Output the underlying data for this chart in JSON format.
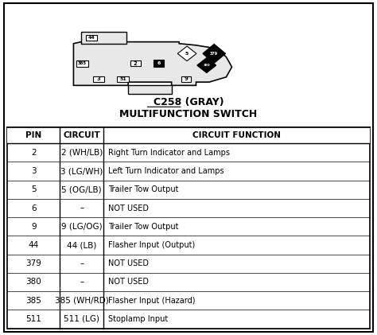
{
  "title_line1": "C258 (GRAY)",
  "title_line2": "MULTIFUNCTION SWITCH",
  "col_headers": [
    "PIN",
    "CIRCUIT",
    "CIRCUIT FUNCTION"
  ],
  "rows": [
    [
      "2",
      "2 (WH/LB)",
      "Right Turn Indicator and Lamps"
    ],
    [
      "3",
      "3 (LG/WH)",
      "Left Turn Indicator and Lamps"
    ],
    [
      "5",
      "5 (OG/LB)",
      "Trailer Tow Output"
    ],
    [
      "6",
      "–",
      "NOT USED"
    ],
    [
      "9",
      "9 (LG/OG)",
      "Trailer Tow Output"
    ],
    [
      "44",
      "44 (LB)",
      "Flasher Input (Output)"
    ],
    [
      "379",
      "–",
      "NOT USED"
    ],
    [
      "380",
      "–",
      "NOT USED"
    ],
    [
      "385",
      "385 (WH/RD)",
      "Flasher Input (Hazard)"
    ],
    [
      "511",
      "511 (LG)",
      "Stoplamp Input"
    ]
  ],
  "bg_color": "#ffffff",
  "col_headers_list": [
    "PIN",
    "CIRCUIT",
    "CIRCUIT FUNCTION"
  ]
}
